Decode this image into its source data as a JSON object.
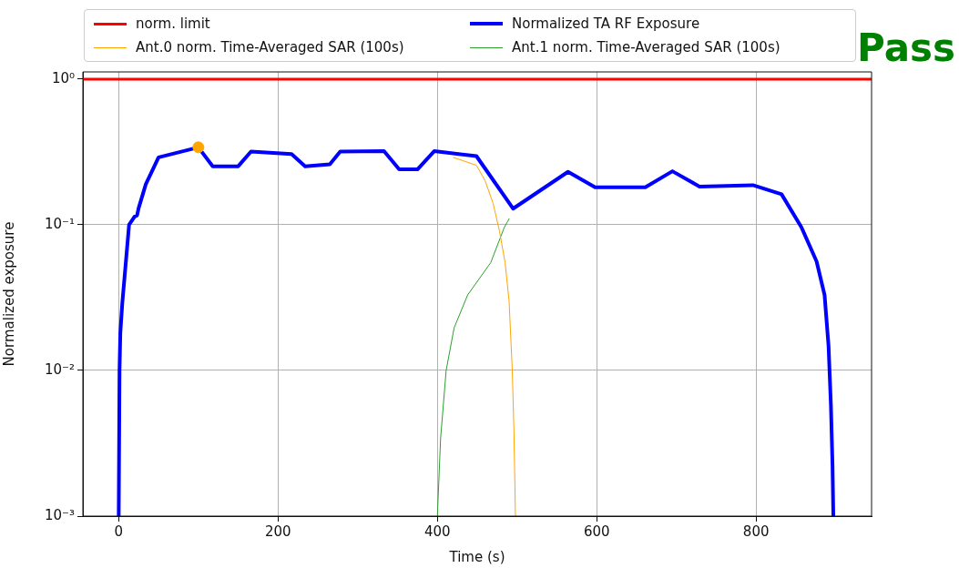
{
  "chart_data": {
    "type": "line",
    "xlabel": "Time (s)",
    "ylabel": "Normalized exposure",
    "log": "y",
    "grid": true,
    "legend": "top",
    "marker": "none",
    "line_style": "solid",
    "xlim": [
      -45,
      945
    ],
    "xticks": [
      0,
      200,
      400,
      600,
      800
    ],
    "ylim": [
      0.001,
      1.12
    ],
    "yticks": [
      {
        "value": 0.001,
        "label": "10⁻³"
      },
      {
        "value": 0.01,
        "label": "10⁻²"
      },
      {
        "value": 0.1,
        "label": "10⁻¹"
      },
      {
        "value": 1,
        "label": "10⁰"
      }
    ],
    "series": [
      {
        "name": "norm. limit",
        "color": "#ff0000",
        "x": [
          -45,
          945
        ],
        "values": [
          1,
          1
        ]
      },
      {
        "name": "Ant.0 norm. Time-Averaged SAR (100s)",
        "color": "#ffa500",
        "x": [
          420,
          449,
          460,
          470,
          478,
          485,
          490,
          494,
          496,
          498
        ],
        "values": [
          0.29,
          0.256,
          0.2,
          0.14,
          0.09,
          0.055,
          0.03,
          0.01,
          0.004,
          0.001
        ]
      },
      {
        "name": "Normalized TA RF Exposure",
        "color": "#0000ff",
        "x": [
          0,
          1,
          2,
          4.5,
          13,
          20,
          23,
          25,
          34,
          50,
          100,
          118,
          150,
          166,
          217,
          234,
          265,
          278,
          333,
          352,
          375,
          396,
          449,
          495,
          564,
          598,
          661,
          695,
          729,
          796,
          832,
          857,
          876,
          886,
          891,
          894,
          896,
          897
        ],
        "values": [
          0.001,
          0.01,
          0.018,
          0.029,
          0.1,
          0.114,
          0.116,
          0.13,
          0.19,
          0.29,
          0.34,
          0.252,
          0.252,
          0.318,
          0.306,
          0.252,
          0.26,
          0.318,
          0.32,
          0.24,
          0.24,
          0.32,
          0.296,
          0.129,
          0.231,
          0.181,
          0.181,
          0.233,
          0.183,
          0.187,
          0.162,
          0.096,
          0.056,
          0.033,
          0.0147,
          0.0057,
          0.0022,
          0.001
        ]
      },
      {
        "name": "Ant.1 norm. Time-Averaged SAR (100s)",
        "color": "#2ca02c",
        "x": [
          400,
          404,
          411,
          421,
          438,
          467,
          484,
          490
        ],
        "values": [
          0.001,
          0.0034,
          0.01,
          0.0196,
          0.033,
          0.055,
          0.096,
          0.11
        ]
      },
      {
        "type": "scatter",
        "color": "#ffa500",
        "x": [
          100
        ],
        "values": [
          0.34
        ],
        "marker": "circle"
      }
    ],
    "annotations": [
      "Pass"
    ]
  }
}
